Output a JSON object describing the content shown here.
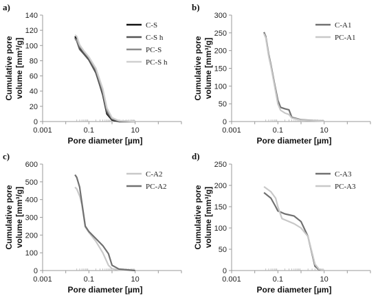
{
  "chart_data": [
    {
      "panel": "a)",
      "type": "line",
      "xscale": "log",
      "xlim": [
        0.001,
        1000
      ],
      "ylim": [
        0,
        140
      ],
      "xticks": [
        "0.001",
        "0.1",
        "10"
      ],
      "yticks": [
        "0",
        "20",
        "40",
        "60",
        "80",
        "100",
        "120",
        "140"
      ],
      "xlabel": "Pore diameter [µm]",
      "ylabel": [
        "Cumulative pore",
        "volume [mm³/g]"
      ],
      "legend": "top-right",
      "series": [
        {
          "name": "C-S",
          "color": "#111111",
          "x": [
            0.025,
            0.03,
            0.04,
            0.06,
            0.1,
            0.2,
            0.4,
            0.6,
            1,
            2,
            10
          ],
          "y": [
            112,
            108,
            96,
            90,
            82,
            65,
            35,
            10,
            2,
            0,
            0
          ]
        },
        {
          "name": "C-S h",
          "color": "#555555",
          "x": [
            0.025,
            0.03,
            0.04,
            0.06,
            0.1,
            0.2,
            0.4,
            0.6,
            1,
            2,
            10
          ],
          "y": [
            110,
            106,
            95,
            89,
            81,
            64,
            36,
            12,
            3,
            0,
            0
          ]
        },
        {
          "name": "PC-S",
          "color": "#8c8c8c",
          "x": [
            0.025,
            0.03,
            0.04,
            0.06,
            0.1,
            0.2,
            0.4,
            0.6,
            1,
            2,
            10
          ],
          "y": [
            108,
            107,
            99,
            92,
            84,
            68,
            40,
            15,
            4,
            1,
            0
          ]
        },
        {
          "name": "PC-S h",
          "color": "#cfcfcf",
          "x": [
            0.025,
            0.03,
            0.04,
            0.06,
            0.1,
            0.2,
            0.4,
            0.6,
            1,
            2,
            10
          ],
          "y": [
            114,
            112,
            101,
            93,
            85,
            70,
            43,
            18,
            5,
            1,
            0
          ]
        }
      ]
    },
    {
      "panel": "b)",
      "type": "line",
      "xscale": "log",
      "xlim": [
        0.001,
        1000
      ],
      "ylim": [
        0,
        300
      ],
      "xticks": [
        "0.001",
        "0.1",
        "10"
      ],
      "yticks": [
        "0",
        "50",
        "100",
        "150",
        "200",
        "250",
        "300"
      ],
      "xlabel": "Pore diameter [µm]",
      "ylabel": [
        "Cumulative pore",
        "volume [mm³/g]"
      ],
      "legend": "top-right",
      "series": [
        {
          "name": "C-A1",
          "color": "#707070",
          "x": [
            0.025,
            0.03,
            0.04,
            0.05,
            0.07,
            0.1,
            0.13,
            0.2,
            0.3,
            0.4,
            1,
            10
          ],
          "y": [
            252,
            240,
            190,
            160,
            110,
            60,
            40,
            36,
            33,
            12,
            5,
            1
          ]
        },
        {
          "name": "PC-A1",
          "color": "#c8c8c8",
          "x": [
            0.025,
            0.03,
            0.04,
            0.05,
            0.07,
            0.1,
            0.13,
            0.2,
            0.3,
            0.4,
            1,
            10
          ],
          "y": [
            248,
            236,
            185,
            155,
            105,
            50,
            32,
            24,
            20,
            10,
            4,
            1
          ]
        }
      ]
    },
    {
      "panel": "c)",
      "type": "line",
      "xscale": "log",
      "xlim": [
        0.001,
        1000
      ],
      "ylim": [
        0,
        600
      ],
      "xticks": [
        "0.001",
        "0.1",
        "10"
      ],
      "yticks": [
        "0",
        "100",
        "200",
        "300",
        "400",
        "500",
        "600"
      ],
      "xlabel": "Pore diameter [µm]",
      "ylabel": [
        "Cumulative pore",
        "volume [mm³/g]"
      ],
      "legend": "top-right",
      "series": [
        {
          "name": "C-A2",
          "color": "#c8c8c8",
          "x": [
            0.025,
            0.03,
            0.04,
            0.05,
            0.07,
            0.1,
            0.2,
            0.4,
            0.7,
            1,
            2,
            10
          ],
          "y": [
            470,
            460,
            420,
            370,
            245,
            215,
            165,
            100,
            30,
            10,
            3,
            0
          ]
        },
        {
          "name": "PC-A2",
          "color": "#707070",
          "x": [
            0.025,
            0.03,
            0.04,
            0.05,
            0.07,
            0.1,
            0.2,
            0.4,
            0.7,
            1,
            2,
            10
          ],
          "y": [
            540,
            525,
            470,
            380,
            250,
            220,
            180,
            140,
            95,
            30,
            8,
            0
          ]
        }
      ]
    },
    {
      "panel": "d)",
      "type": "line",
      "xscale": "log",
      "xlim": [
        0.001,
        1000
      ],
      "ylim": [
        0,
        250
      ],
      "xticks": [
        "0.001",
        "0.1",
        "10"
      ],
      "yticks": [
        "0",
        "50",
        "100",
        "150",
        "200",
        "250"
      ],
      "xlabel": "Pore diameter [µm]",
      "ylabel": [
        "Cumulative pore",
        "volume [mm³/g]"
      ],
      "legend": "top-right",
      "series": [
        {
          "name": "C-A3",
          "color": "#707070",
          "x": [
            0.025,
            0.05,
            0.08,
            0.1,
            0.2,
            0.5,
            1,
            2,
            4,
            6,
            10
          ],
          "y": [
            183,
            170,
            150,
            140,
            133,
            128,
            115,
            80,
            10,
            2,
            0
          ]
        },
        {
          "name": "PC-A3",
          "color": "#c8c8c8",
          "x": [
            0.025,
            0.05,
            0.08,
            0.1,
            0.15,
            0.5,
            1,
            2,
            4,
            6,
            10
          ],
          "y": [
            197,
            185,
            170,
            150,
            122,
            110,
            100,
            80,
            15,
            3,
            0
          ]
        }
      ]
    }
  ]
}
